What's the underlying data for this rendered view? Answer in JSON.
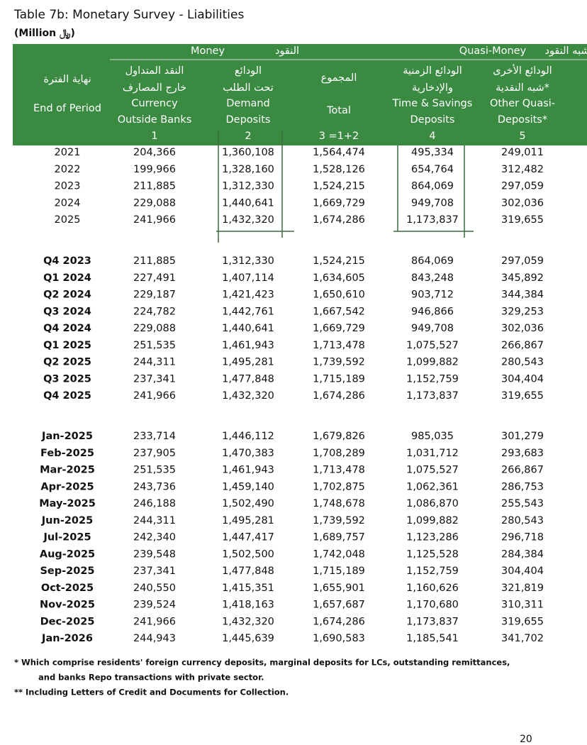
{
  "header": {
    "title": "Table 7b: Monetary Survey - Liabilities",
    "subtitle": "(Million ﷼)"
  },
  "table": {
    "groups": [
      {
        "en": "Money",
        "ar": "النقود"
      },
      {
        "en": "Quasi-Money",
        "ar": "شبه النقود"
      }
    ],
    "columns": [
      {
        "ar": [
          "نهاية الفترة"
        ],
        "en": [
          "End of Period"
        ],
        "num": null
      },
      {
        "ar": [
          "النقد المتداول",
          "خارج المصارف"
        ],
        "en": [
          "Currency",
          "Outside Banks"
        ],
        "num": "1"
      },
      {
        "ar": [
          "الودائع",
          "تحت الطلب"
        ],
        "en": [
          "Demand",
          "Deposits"
        ],
        "num": "2"
      },
      {
        "ar": [
          "المجموع"
        ],
        "en": [
          "Total"
        ],
        "num": "3 =1+2"
      },
      {
        "ar": [
          "الودائع  الزمنية",
          "والإدخارية"
        ],
        "en": [
          "Time & Savings",
          "Deposits"
        ],
        "num": "4"
      },
      {
        "ar": [
          "الودائع الأخرى",
          "شبه النقدية*"
        ],
        "en": [
          "Other Quasi-",
          "Deposits*"
        ],
        "num": "5"
      }
    ],
    "sections": [
      {
        "rows": [
          [
            "2021",
            "204,366",
            "1,360,108",
            "1,564,474",
            "495,334",
            "249,011"
          ],
          [
            "2022",
            "199,966",
            "1,328,160",
            "1,528,126",
            "654,764",
            "312,482"
          ],
          [
            "2023",
            "211,885",
            "1,312,330",
            "1,524,215",
            "864,069",
            "297,059"
          ],
          [
            "2024",
            "229,088",
            "1,440,641",
            "1,669,729",
            "949,708",
            "302,036"
          ],
          [
            "2025",
            "241,966",
            "1,432,320",
            "1,674,286",
            "1,173,837",
            "319,655"
          ]
        ]
      },
      {
        "rows": [
          [
            "Q4 2023",
            "211,885",
            "1,312,330",
            "1,524,215",
            "864,069",
            "297,059"
          ],
          [
            "Q1 2024",
            "227,491",
            "1,407,114",
            "1,634,605",
            "843,248",
            "345,892"
          ],
          [
            "Q2 2024",
            "229,187",
            "1,421,423",
            "1,650,610",
            "903,712",
            "344,384"
          ],
          [
            "Q3 2024",
            "224,782",
            "1,442,761",
            "1,667,542",
            "946,866",
            "329,253"
          ],
          [
            "Q4 2024",
            "229,088",
            "1,440,641",
            "1,669,729",
            "949,708",
            "302,036"
          ],
          [
            "Q1 2025",
            "251,535",
            "1,461,943",
            "1,713,478",
            "1,075,527",
            "266,867"
          ],
          [
            "Q2 2025",
            "244,311",
            "1,495,281",
            "1,739,592",
            "1,099,882",
            "280,543"
          ],
          [
            "Q3 2025",
            "237,341",
            "1,477,848",
            "1,715,189",
            "1,152,759",
            "304,404"
          ],
          [
            "Q4 2025",
            "241,966",
            "1,432,320",
            "1,674,286",
            "1,173,837",
            "319,655"
          ]
        ]
      },
      {
        "rows": [
          [
            "Jan-2025",
            "233,714",
            "1,446,112",
            "1,679,826",
            "985,035",
            "301,279"
          ],
          [
            "Feb-2025",
            "237,905",
            "1,470,383",
            "1,708,289",
            "1,031,712",
            "293,683"
          ],
          [
            "Mar-2025",
            "251,535",
            "1,461,943",
            "1,713,478",
            "1,075,527",
            "266,867"
          ],
          [
            "Apr-2025",
            "243,736",
            "1,459,140",
            "1,702,875",
            "1,062,361",
            "286,753"
          ],
          [
            "May-2025",
            "246,188",
            "1,502,490",
            "1,748,678",
            "1,086,870",
            "255,543"
          ],
          [
            "Jun-2025",
            "244,311",
            "1,495,281",
            "1,739,592",
            "1,099,882",
            "280,543"
          ],
          [
            "Jul-2025",
            "242,340",
            "1,447,417",
            "1,689,757",
            "1,123,286",
            "296,718"
          ],
          [
            "Aug-2025",
            "239,548",
            "1,502,500",
            "1,742,048",
            "1,125,528",
            "284,384"
          ],
          [
            "Sep-2025",
            "237,341",
            "1,477,848",
            "1,715,189",
            "1,152,759",
            "304,404"
          ],
          [
            "Oct-2025",
            "240,550",
            "1,415,351",
            "1,655,901",
            "1,160,626",
            "321,819"
          ],
          [
            "Nov-2025",
            "239,524",
            "1,418,163",
            "1,657,687",
            "1,170,680",
            "310,311"
          ],
          [
            "Dec-2025",
            "241,966",
            "1,432,320",
            "1,674,286",
            "1,173,837",
            "319,655"
          ],
          [
            "Jan-2026",
            "244,943",
            "1,445,639",
            "1,690,583",
            "1,185,541",
            "341,702"
          ]
        ]
      }
    ]
  },
  "footnotes": [
    "*   Which comprise residents' foreign currency deposits, marginal deposits for LCs, outstanding remittances,",
    "and banks Repo transactions with private sector.",
    "**  Including Letters of Credit and Documents for Collection."
  ],
  "page_number": "20"
}
